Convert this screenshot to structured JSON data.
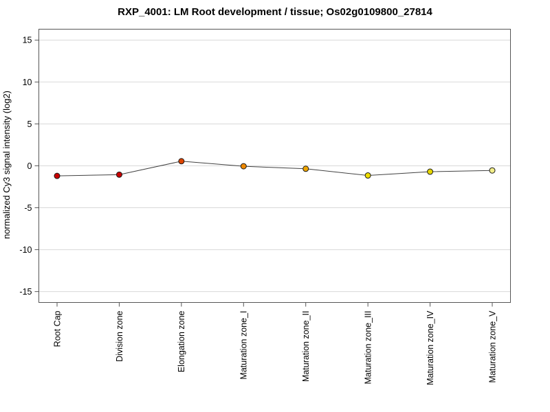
{
  "chart_data": {
    "type": "line",
    "title": "RXP_4001: LM Root development / tissue; Os02g0109800_27814",
    "ylabel": "normalized Cy3 signal intensity (log2)",
    "xlabel": "",
    "categories": [
      "Root Cap",
      "Division zone",
      "Elongation zone",
      "Maturation zone_I",
      "Maturation zone_II",
      "Maturation zone_III",
      "Maturation zone_IV",
      "Maturation zone_V"
    ],
    "series": [
      {
        "name": "normalized Cy3 signal intensity (log2)",
        "values": [
          -1.2,
          -1.05,
          0.55,
          -0.05,
          -0.35,
          -1.15,
          -0.7,
          -0.55
        ]
      }
    ],
    "point_colors": [
      "#c80000",
      "#c80000",
      "#dd4400",
      "#ee8800",
      "#eea500",
      "#eedd00",
      "#e6d600",
      "#f2ee88"
    ],
    "yticks": [
      15,
      10,
      5,
      0,
      -5,
      -10,
      -15
    ],
    "ylim": [
      -16.3,
      16.3
    ],
    "grid": "horizontal",
    "legend": "none",
    "line_color": "#404040",
    "grid_color": "#d9d9d9",
    "border_color": "#555555",
    "tick_label_color": "#000000",
    "background": "#ffffff"
  }
}
